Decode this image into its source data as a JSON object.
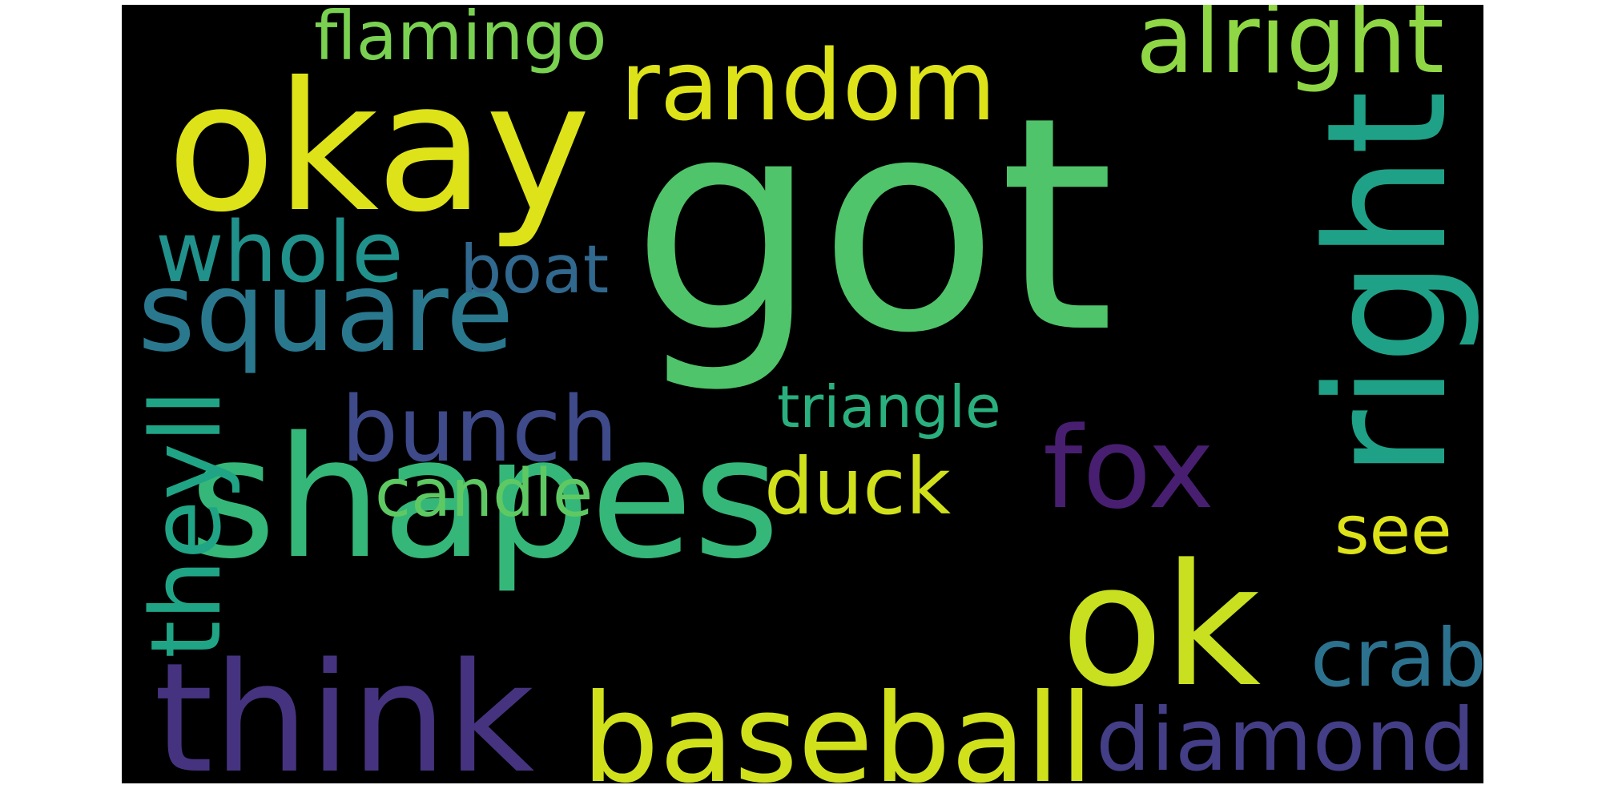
{
  "background_color": "#000000",
  "words": [
    {
      "id": "got",
      "text": "got",
      "color": "#4fc46a"
    },
    {
      "id": "okay",
      "text": "okay",
      "color": "#dde318"
    },
    {
      "id": "random",
      "text": "random",
      "color": "#dde318"
    },
    {
      "id": "shapes",
      "text": "shapes",
      "color": "#35b779"
    },
    {
      "id": "right",
      "text": "right",
      "color": "#1fa187"
    },
    {
      "id": "square",
      "text": "square",
      "color": "#2a788e"
    },
    {
      "id": "ok",
      "text": "ok",
      "color": "#c8e020"
    },
    {
      "id": "think",
      "text": "think",
      "color": "#46337f"
    },
    {
      "id": "baseball",
      "text": "baseball",
      "color": "#d0e11c"
    },
    {
      "id": "diamond",
      "text": "diamond",
      "color": "#433e85"
    },
    {
      "id": "bunch",
      "text": "bunch",
      "color": "#3e4a89"
    },
    {
      "id": "fox",
      "text": "fox",
      "color": "#481f70"
    },
    {
      "id": "whole",
      "text": "whole",
      "color": "#21918c"
    },
    {
      "id": "alright",
      "text": "alright",
      "color": "#8fd744"
    },
    {
      "id": "flamingo",
      "text": "flamingo",
      "color": "#7ad151"
    },
    {
      "id": "boat",
      "text": "boat",
      "color": "#31688e"
    },
    {
      "id": "duck",
      "text": "duck",
      "color": "#d0e11c"
    },
    {
      "id": "candle",
      "text": "candle",
      "color": "#5ec962"
    },
    {
      "id": "theyll",
      "text": "theyll",
      "color": "#20a486"
    },
    {
      "id": "triangle",
      "text": "triangle",
      "color": "#2ab07f"
    },
    {
      "id": "see",
      "text": "see",
      "color": "#dde318"
    },
    {
      "id": "crab",
      "text": "crab",
      "color": "#2c728e"
    }
  ]
}
